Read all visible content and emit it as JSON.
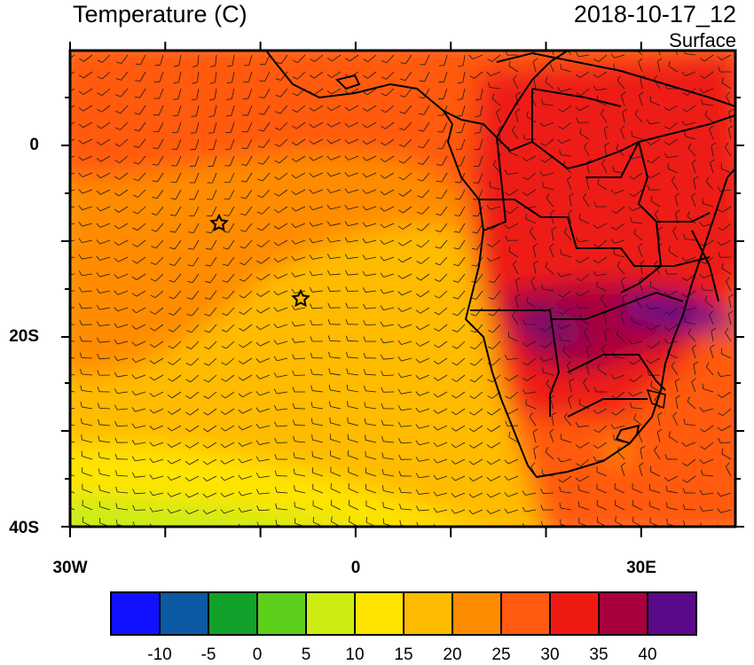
{
  "header": {
    "title": "Temperature (C)",
    "valid_time": "2018-10-17_12",
    "level": "Surface"
  },
  "axes": {
    "y_labels": [
      "0",
      "20S",
      "40S"
    ],
    "x_labels": [
      "30W",
      "0",
      "30E"
    ]
  },
  "map": {
    "region": "South Atlantic and southern Africa",
    "lon_range": [
      -30,
      40
    ],
    "lat_range": [
      -40,
      10
    ],
    "overlay": "wind barbs",
    "markers": [
      "star",
      "star"
    ],
    "colorbar": {
      "levels": [
        "-10",
        "-5",
        "0",
        "5",
        "10",
        "15",
        "20",
        "25",
        "30",
        "35",
        "40"
      ],
      "colors": [
        "#1111ff",
        "#0b5aa3",
        "#12a12a",
        "#5ccf1a",
        "#ccec12",
        "#ffe400",
        "#ffbb00",
        "#ff8c00",
        "#ff5a10",
        "#ee1a12",
        "#a8003c",
        "#5b0a8c"
      ]
    }
  }
}
